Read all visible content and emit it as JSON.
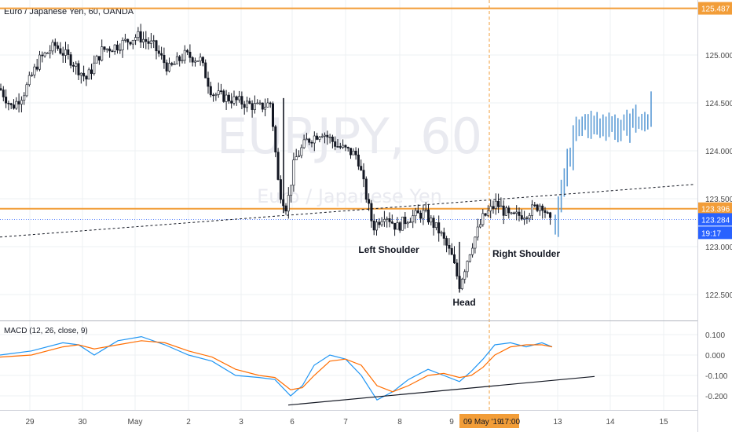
{
  "header": {
    "title": "Euro / Japanese Yen, 60, OANDA"
  },
  "watermark": {
    "symbol": "EURJPY, 60",
    "name": "Euro / Japanese Yen"
  },
  "colors": {
    "candle": "#131722",
    "projection": "#5b9bd5",
    "level_line": "#f29d38",
    "macd_line": "#2196f3",
    "signal_line": "#ff6d00",
    "grid": "#eef0f3",
    "price_box": "#2962ff"
  },
  "price_labels": {
    "top_level": "125.487",
    "neckline_level": "123.396",
    "current_price": "123.284",
    "countdown": "19:17"
  },
  "time_cursor": {
    "label": "09 May '19",
    "time": "17:00"
  },
  "annotations": {
    "left_shoulder": "Left Shoulder",
    "head": "Head",
    "right_shoulder": "Right Shoulder"
  },
  "macd": {
    "title": "MACD (12, 26, close, 9)",
    "yticks": [
      "0.100",
      "0.000",
      "-0.100",
      "-0.200"
    ],
    "yvalues": [
      0.1,
      0.0,
      -0.1,
      -0.2
    ],
    "ylim": [
      -0.25,
      0.13
    ]
  },
  "chart_data": {
    "type": "candlestick",
    "title": "Euro / Japanese Yen, 60, OANDA",
    "xlabel": "",
    "ylabel": "",
    "ylim": [
      122.3,
      125.6
    ],
    "yticks": [
      "125.000",
      "124.500",
      "124.000",
      "123.500",
      "123.000",
      "122.500"
    ],
    "yvalues": [
      125.0,
      124.5,
      124.0,
      123.5,
      123.0,
      122.5
    ],
    "xticks": [
      "29",
      "30",
      "May",
      "2",
      "3",
      "6",
      "7",
      "8",
      "9",
      "13",
      "14",
      "15"
    ],
    "horizontal_levels": [
      125.487,
      123.396
    ],
    "current_price": 123.284,
    "price_path": [
      [
        0,
        124.65
      ],
      [
        15,
        124.45
      ],
      [
        30,
        124.6
      ],
      [
        50,
        124.95
      ],
      [
        70,
        125.1
      ],
      [
        90,
        124.95
      ],
      [
        110,
        124.75
      ],
      [
        130,
        125.05
      ],
      [
        150,
        125.1
      ],
      [
        175,
        125.2
      ],
      [
        195,
        125.1
      ],
      [
        215,
        124.85
      ],
      [
        235,
        125.0
      ],
      [
        255,
        124.95
      ],
      [
        270,
        124.6
      ],
      [
        290,
        124.55
      ],
      [
        310,
        124.5
      ],
      [
        330,
        124.45
      ],
      [
        345,
        124.5
      ],
      [
        355,
        123.6
      ],
      [
        365,
        123.4
      ],
      [
        375,
        123.9
      ],
      [
        390,
        124.1
      ],
      [
        410,
        124.2
      ],
      [
        430,
        124.05
      ],
      [
        455,
        123.95
      ],
      [
        475,
        123.2
      ],
      [
        490,
        123.35
      ],
      [
        505,
        123.2
      ],
      [
        520,
        123.3
      ],
      [
        540,
        123.35
      ],
      [
        560,
        123.15
      ],
      [
        575,
        122.9
      ],
      [
        585,
        122.6
      ],
      [
        600,
        123.0
      ],
      [
        615,
        123.3
      ],
      [
        632,
        123.45
      ],
      [
        650,
        123.3
      ],
      [
        670,
        123.35
      ],
      [
        690,
        123.45
      ],
      [
        703,
        123.2
      ]
    ],
    "projection_path": [
      [
        707,
        123.25
      ],
      [
        720,
        123.8
      ],
      [
        733,
        124.2
      ],
      [
        745,
        124.3
      ],
      [
        760,
        124.25
      ],
      [
        775,
        124.3
      ],
      [
        790,
        124.2
      ],
      [
        805,
        124.35
      ],
      [
        818,
        124.25
      ],
      [
        828,
        124.4
      ]
    ],
    "neckline": {
      "from": [
        0,
        123.1
      ],
      "to": [
        885,
        123.65
      ]
    },
    "macd_series": [
      {
        "name": "MACD",
        "points": [
          [
            0,
            0.0
          ],
          [
            40,
            0.02
          ],
          [
            80,
            0.06
          ],
          [
            100,
            0.05
          ],
          [
            120,
            0.0
          ],
          [
            150,
            0.07
          ],
          [
            180,
            0.09
          ],
          [
            210,
            0.05
          ],
          [
            240,
            0.0
          ],
          [
            270,
            -0.03
          ],
          [
            300,
            -0.1
          ],
          [
            330,
            -0.11
          ],
          [
            350,
            -0.12
          ],
          [
            370,
            -0.2
          ],
          [
            385,
            -0.15
          ],
          [
            400,
            -0.05
          ],
          [
            420,
            0.0
          ],
          [
            440,
            -0.02
          ],
          [
            460,
            -0.1
          ],
          [
            480,
            -0.22
          ],
          [
            500,
            -0.18
          ],
          [
            520,
            -0.12
          ],
          [
            545,
            -0.07
          ],
          [
            565,
            -0.1
          ],
          [
            585,
            -0.13
          ],
          [
            600,
            -0.08
          ],
          [
            615,
            -0.02
          ],
          [
            630,
            0.05
          ],
          [
            650,
            0.06
          ],
          [
            670,
            0.04
          ],
          [
            690,
            0.06
          ],
          [
            703,
            0.04
          ]
        ]
      },
      {
        "name": "Signal",
        "points": [
          [
            0,
            -0.01
          ],
          [
            40,
            0.0
          ],
          [
            80,
            0.04
          ],
          [
            100,
            0.05
          ],
          [
            120,
            0.03
          ],
          [
            150,
            0.05
          ],
          [
            180,
            0.07
          ],
          [
            210,
            0.06
          ],
          [
            240,
            0.02
          ],
          [
            270,
            -0.01
          ],
          [
            300,
            -0.07
          ],
          [
            330,
            -0.1
          ],
          [
            350,
            -0.11
          ],
          [
            370,
            -0.17
          ],
          [
            385,
            -0.16
          ],
          [
            400,
            -0.1
          ],
          [
            420,
            -0.03
          ],
          [
            440,
            -0.02
          ],
          [
            460,
            -0.05
          ],
          [
            480,
            -0.15
          ],
          [
            500,
            -0.18
          ],
          [
            520,
            -0.15
          ],
          [
            545,
            -0.1
          ],
          [
            565,
            -0.09
          ],
          [
            585,
            -0.11
          ],
          [
            600,
            -0.1
          ],
          [
            615,
            -0.06
          ],
          [
            630,
            0.0
          ],
          [
            650,
            0.04
          ],
          [
            670,
            0.05
          ],
          [
            690,
            0.05
          ],
          [
            703,
            0.04
          ]
        ]
      }
    ],
    "macd_trendline": {
      "from": [
        367,
        -0.245
      ],
      "to": [
        757,
        -0.105
      ]
    }
  }
}
